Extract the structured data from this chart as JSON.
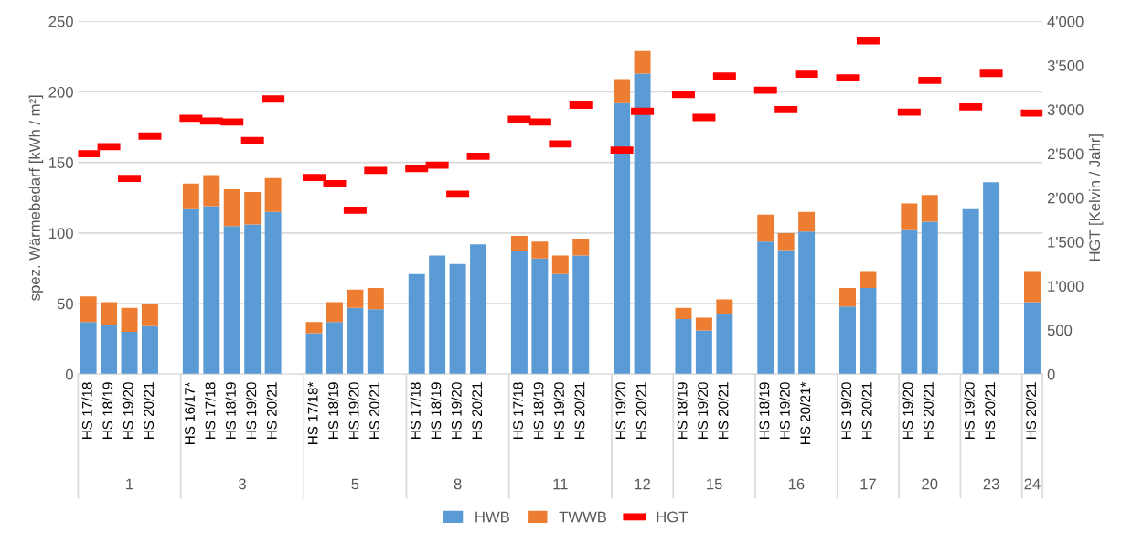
{
  "chart_data": {
    "type": "bar",
    "stacked": true,
    "ylabel": "spez. Wärmebedarf [kWh / m²]",
    "y2label": "HGT [Kelvin / Jahr]",
    "categories": [
      "HS 17/18",
      "HS 18/19",
      "HS 19/20",
      "HS 20/21",
      null,
      "HS 16/17*",
      "HS 17/18",
      "HS 18/19",
      "HS 19/20",
      "HS 20/21",
      null,
      "HS 17/18*",
      "HS 18/19",
      "HS 19/20",
      "HS 20/21",
      null,
      "HS 17/18",
      "HS 18/19",
      "HS 19/20",
      "HS 20/21",
      null,
      "HS 17/18",
      "HS 18/19",
      "HS 19/20",
      "HS 20/21",
      null,
      "HS 19/20",
      "HS 20/21",
      null,
      "HS 18/19",
      "HS 19/20",
      "HS 20/21",
      null,
      "HS 18/19",
      "HS 19/20",
      "HS 20/21*",
      null,
      "HS 19/20",
      "HS 20/21",
      null,
      "HS 19/20",
      "HS 20/21",
      null,
      "HS 19/20",
      "HS 20/21",
      null,
      "HS 20/21"
    ],
    "annotations": [
      "1",
      "3",
      "5",
      "8",
      "11",
      "12",
      "15",
      "16",
      "17",
      "20",
      "23",
      "24"
    ],
    "series": [
      {
        "name": "HWB",
        "color": "#5b9bd5",
        "values": [
          37,
          35,
          30,
          34,
          null,
          117,
          119,
          105,
          106,
          115,
          null,
          29,
          37,
          47,
          46,
          null,
          71,
          84,
          78,
          92,
          null,
          87,
          82,
          71,
          84,
          null,
          192,
          213,
          null,
          39,
          31,
          43,
          null,
          94,
          88,
          101,
          null,
          48,
          61,
          null,
          102,
          108,
          null,
          117,
          136,
          null,
          51
        ]
      },
      {
        "name": "TWWB",
        "color": "#ed7d31",
        "values": [
          18,
          16,
          17,
          16,
          null,
          18,
          22,
          26,
          23,
          24,
          null,
          8,
          14,
          13,
          15,
          null,
          null,
          null,
          null,
          null,
          null,
          11,
          12,
          13,
          12,
          null,
          17,
          16,
          null,
          8,
          9,
          10,
          null,
          19,
          12,
          14,
          null,
          13,
          12,
          null,
          19,
          19,
          null,
          null,
          null,
          null,
          22
        ]
      },
      {
        "name": "HGT",
        "color": "#ff0000",
        "type": "scatter",
        "axis": "y2",
        "marker": "square",
        "values": [
          2500,
          2580,
          2220,
          2700,
          null,
          2900,
          2870,
          2860,
          2650,
          3120,
          null,
          2230,
          2160,
          1860,
          2310,
          null,
          2330,
          2370,
          2040,
          2470,
          null,
          2890,
          2860,
          2610,
          3050,
          null,
          2540,
          2980,
          null,
          3170,
          2910,
          3380,
          null,
          3220,
          3000,
          3400,
          null,
          3360,
          3780,
          null,
          2970,
          3330,
          null,
          3030,
          3410,
          null,
          2960
        ]
      }
    ],
    "ylim": [
      0,
      250
    ],
    "yticks": [
      0,
      50,
      100,
      150,
      200,
      250
    ],
    "y2lim": [
      0,
      4000
    ],
    "y2ticks": [
      0,
      500,
      {
        "value": 1000,
        "label": "1'000"
      },
      {
        "value": 1500,
        "label": "1'500"
      },
      {
        "value": 2000,
        "label": "2'000"
      },
      {
        "value": 2500,
        "label": "2'500"
      },
      {
        "value": 3000,
        "label": "3'000"
      },
      {
        "value": 3500,
        "label": "3'500"
      },
      {
        "value": 4000,
        "label": "4'000"
      }
    ],
    "grid": "y",
    "legend": "bottom"
  }
}
